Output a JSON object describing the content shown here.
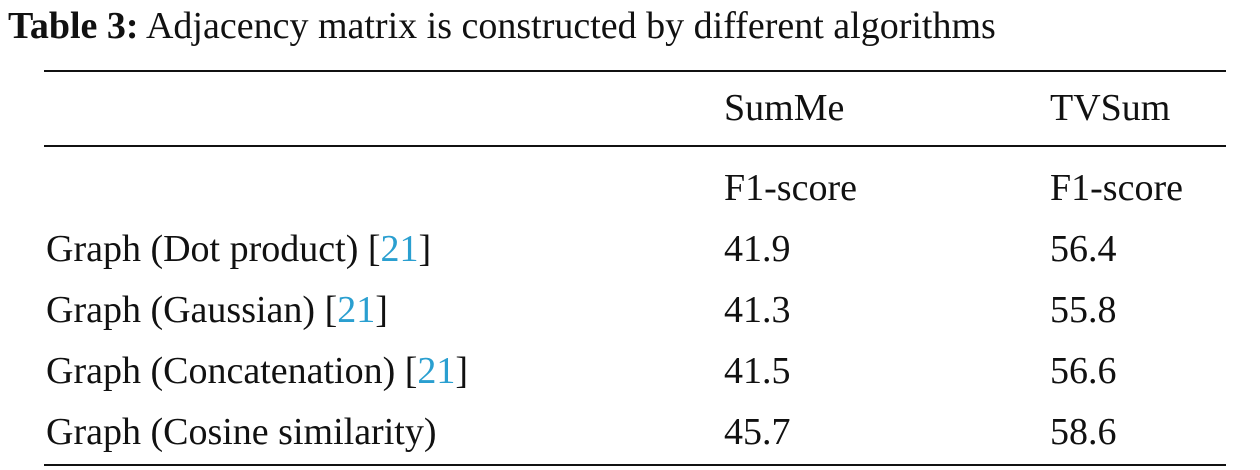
{
  "caption": {
    "label": "Table 3:",
    "text": "Adjacency matrix is constructed by different algorithms"
  },
  "table": {
    "header": {
      "datasets": [
        "SumMe",
        "TVSum"
      ],
      "metrics": [
        "F1-score",
        "F1-score"
      ]
    },
    "rows": [
      {
        "method": "Graph (Dot product)",
        "ref": "21",
        "summe": "41.9",
        "tvsum": "56.4"
      },
      {
        "method": "Graph (Gaussian)",
        "ref": "21",
        "summe": "41.3",
        "tvsum": "55.8"
      },
      {
        "method": "Graph (Concatenation)",
        "ref": "21",
        "summe": "41.5",
        "tvsum": "56.6"
      },
      {
        "method": "Graph (Cosine similarity)",
        "ref": "",
        "summe": "45.7",
        "tvsum": "58.6"
      }
    ]
  },
  "colors": {
    "citation": "#2a9fd0",
    "text": "#111111"
  }
}
